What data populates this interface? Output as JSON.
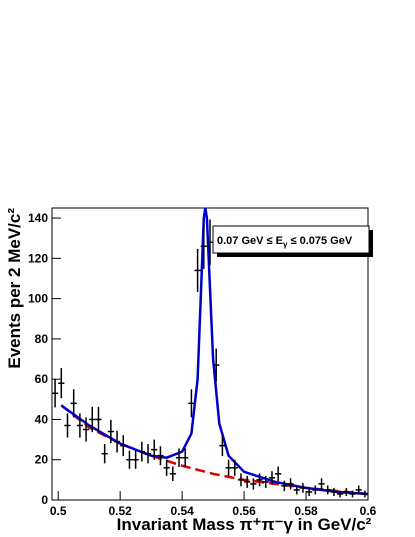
{
  "chart_data": {
    "type": "errorbar",
    "ylabel": "Events per 2 MeV/c²",
    "xlabel": "Invariant Mass π⁺π⁻γ   in GeV/c²",
    "annotation": [
      "0.07 GeV ≤ E",
      "γ",
      " ≤ 0.075 GeV"
    ],
    "xlim": [
      0.498,
      0.6
    ],
    "ylim": [
      0,
      145
    ],
    "xticks": [
      0.5,
      0.52,
      0.54,
      0.56,
      0.58,
      0.6
    ],
    "yticks": [
      0,
      20,
      40,
      60,
      80,
      100,
      120,
      140
    ],
    "bin_width": 0.002,
    "x": [
      0.499,
      0.501,
      0.503,
      0.505,
      0.507,
      0.509,
      0.511,
      0.513,
      0.515,
      0.517,
      0.519,
      0.521,
      0.523,
      0.525,
      0.527,
      0.529,
      0.531,
      0.533,
      0.535,
      0.537,
      0.539,
      0.541,
      0.543,
      0.545,
      0.547,
      0.549,
      0.551,
      0.553,
      0.555,
      0.557,
      0.559,
      0.561,
      0.563,
      0.565,
      0.567,
      0.569,
      0.571,
      0.573,
      0.575,
      0.577,
      0.579,
      0.581,
      0.583,
      0.585,
      0.587,
      0.589,
      0.591,
      0.593,
      0.595,
      0.597,
      0.599
    ],
    "values": [
      53,
      58,
      37,
      48,
      37,
      35,
      40,
      40,
      23,
      34,
      29,
      27,
      20,
      20,
      24,
      23,
      25,
      22,
      16,
      13,
      21,
      21,
      48,
      114,
      126,
      128,
      67,
      27,
      16,
      16,
      10,
      9,
      8,
      10,
      9,
      11,
      13,
      7,
      8,
      5,
      6,
      4,
      5,
      8,
      5,
      4,
      3,
      4,
      3,
      5,
      3
    ],
    "errors": [
      7,
      7.5,
      6,
      7,
      6,
      6,
      6.3,
      6.3,
      4.8,
      5.8,
      5.4,
      5.2,
      4.5,
      4.5,
      4.9,
      4.8,
      5,
      4.7,
      4,
      3.6,
      4.6,
      4.6,
      7,
      10.7,
      11.2,
      11.3,
      8.2,
      5.2,
      4,
      4,
      3.2,
      3,
      2.8,
      3.2,
      3,
      3.3,
      3.6,
      2.6,
      2.8,
      2.2,
      2.4,
      2,
      2.2,
      2.8,
      2.2,
      2,
      1.7,
      2,
      1.7,
      2.2,
      1.7
    ],
    "curves": [
      {
        "color": "#dd0000",
        "dashed": true,
        "x": [
          0.501,
          0.51,
          0.52,
          0.53,
          0.54,
          0.55,
          0.56,
          0.57,
          0.58,
          0.59,
          0.6
        ],
        "y": [
          47,
          36,
          28,
          22,
          17,
          13,
          10,
          8,
          6,
          4.5,
          3
        ]
      },
      {
        "color": "#0000cc",
        "dashed": false,
        "x": [
          0.501,
          0.51,
          0.52,
          0.53,
          0.535,
          0.54,
          0.543,
          0.545,
          0.546,
          0.547,
          0.5475,
          0.548,
          0.549,
          0.55,
          0.552,
          0.555,
          0.56,
          0.57,
          0.58,
          0.59,
          0.6
        ],
        "y": [
          47,
          37,
          28,
          22,
          21,
          24,
          33,
          60,
          100,
          140,
          145,
          140,
          105,
          70,
          38,
          22,
          14,
          9,
          6,
          4,
          3
        ]
      }
    ]
  }
}
